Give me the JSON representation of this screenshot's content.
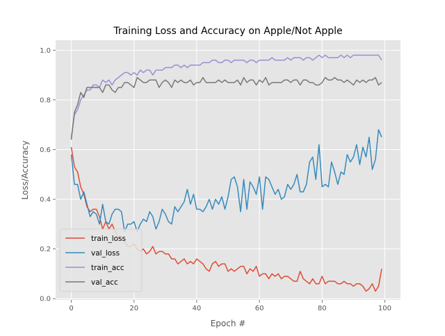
{
  "chart_data": {
    "type": "line",
    "title": "Training Loss and Accuracy on Apple/Not Apple",
    "xlabel": "Epoch #",
    "ylabel": "Loss/Accuracy",
    "xlim": [
      -5,
      105
    ],
    "ylim": [
      -0.005,
      1.04
    ],
    "xticks": [
      0,
      20,
      40,
      60,
      80,
      100
    ],
    "yticks": [
      0.0,
      0.2,
      0.4,
      0.6,
      0.8,
      1.0
    ],
    "xtick_labels": [
      "0",
      "20",
      "40",
      "60",
      "80",
      "100"
    ],
    "ytick_labels": [
      "0.0",
      "0.2",
      "0.4",
      "0.6",
      "0.8",
      "1.0"
    ],
    "grid": true,
    "legend_position": "lower-left",
    "style": "ggplot",
    "x": [
      0,
      1,
      2,
      3,
      4,
      5,
      6,
      7,
      8,
      9,
      10,
      11,
      12,
      13,
      14,
      15,
      16,
      17,
      18,
      19,
      20,
      21,
      22,
      23,
      24,
      25,
      26,
      27,
      28,
      29,
      30,
      31,
      32,
      33,
      34,
      35,
      36,
      37,
      38,
      39,
      40,
      41,
      42,
      43,
      44,
      45,
      46,
      47,
      48,
      49,
      50,
      51,
      52,
      53,
      54,
      55,
      56,
      57,
      58,
      59,
      60,
      61,
      62,
      63,
      64,
      65,
      66,
      67,
      68,
      69,
      70,
      71,
      72,
      73,
      74,
      75,
      76,
      77,
      78,
      79,
      80,
      81,
      82,
      83,
      84,
      85,
      86,
      87,
      88,
      89,
      90,
      91,
      92,
      93,
      94,
      95,
      96,
      97,
      98,
      99
    ],
    "series": [
      {
        "name": "train_loss",
        "color": "#E24A33",
        "values": [
          0.61,
          0.53,
          0.51,
          0.45,
          0.42,
          0.37,
          0.35,
          0.36,
          0.36,
          0.33,
          0.28,
          0.31,
          0.28,
          0.3,
          0.27,
          0.25,
          0.24,
          0.23,
          0.21,
          0.21,
          0.22,
          0.2,
          0.19,
          0.2,
          0.18,
          0.19,
          0.21,
          0.18,
          0.19,
          0.19,
          0.18,
          0.18,
          0.16,
          0.16,
          0.14,
          0.15,
          0.16,
          0.14,
          0.15,
          0.14,
          0.16,
          0.15,
          0.14,
          0.12,
          0.11,
          0.14,
          0.15,
          0.13,
          0.14,
          0.14,
          0.11,
          0.12,
          0.11,
          0.12,
          0.13,
          0.13,
          0.1,
          0.12,
          0.11,
          0.13,
          0.09,
          0.1,
          0.1,
          0.08,
          0.1,
          0.09,
          0.1,
          0.08,
          0.09,
          0.09,
          0.08,
          0.07,
          0.07,
          0.11,
          0.08,
          0.07,
          0.06,
          0.08,
          0.06,
          0.06,
          0.09,
          0.06,
          0.07,
          0.07,
          0.07,
          0.06,
          0.06,
          0.07,
          0.06,
          0.06,
          0.05,
          0.06,
          0.06,
          0.05,
          0.03,
          0.04,
          0.06,
          0.03,
          0.05,
          0.12
        ]
      },
      {
        "name": "val_loss",
        "color": "#348ABD",
        "values": [
          0.58,
          0.46,
          0.46,
          0.4,
          0.43,
          0.38,
          0.33,
          0.35,
          0.34,
          0.3,
          0.38,
          0.31,
          0.3,
          0.34,
          0.36,
          0.36,
          0.35,
          0.27,
          0.3,
          0.3,
          0.31,
          0.27,
          0.3,
          0.32,
          0.31,
          0.35,
          0.33,
          0.28,
          0.31,
          0.36,
          0.34,
          0.31,
          0.3,
          0.37,
          0.35,
          0.37,
          0.39,
          0.44,
          0.38,
          0.42,
          0.36,
          0.36,
          0.35,
          0.37,
          0.4,
          0.36,
          0.4,
          0.38,
          0.41,
          0.36,
          0.41,
          0.48,
          0.49,
          0.45,
          0.35,
          0.48,
          0.36,
          0.47,
          0.45,
          0.42,
          0.49,
          0.36,
          0.49,
          0.48,
          0.45,
          0.42,
          0.44,
          0.4,
          0.41,
          0.46,
          0.44,
          0.46,
          0.5,
          0.43,
          0.43,
          0.46,
          0.55,
          0.57,
          0.48,
          0.62,
          0.45,
          0.46,
          0.45,
          0.55,
          0.51,
          0.46,
          0.51,
          0.5,
          0.58,
          0.55,
          0.57,
          0.62,
          0.54,
          0.61,
          0.57,
          0.65,
          0.52,
          0.56,
          0.68,
          0.65
        ]
      },
      {
        "name": "train_acc",
        "color": "#988ED5",
        "values": [
          0.65,
          0.74,
          0.76,
          0.8,
          0.82,
          0.84,
          0.84,
          0.86,
          0.86,
          0.85,
          0.88,
          0.87,
          0.88,
          0.86,
          0.88,
          0.89,
          0.9,
          0.91,
          0.91,
          0.9,
          0.91,
          0.9,
          0.92,
          0.91,
          0.92,
          0.92,
          0.9,
          0.92,
          0.92,
          0.92,
          0.93,
          0.93,
          0.93,
          0.94,
          0.94,
          0.93,
          0.94,
          0.93,
          0.94,
          0.94,
          0.94,
          0.94,
          0.95,
          0.95,
          0.95,
          0.96,
          0.96,
          0.95,
          0.95,
          0.96,
          0.96,
          0.95,
          0.96,
          0.96,
          0.96,
          0.96,
          0.95,
          0.96,
          0.96,
          0.95,
          0.96,
          0.96,
          0.96,
          0.96,
          0.97,
          0.96,
          0.96,
          0.96,
          0.96,
          0.97,
          0.96,
          0.97,
          0.97,
          0.97,
          0.96,
          0.97,
          0.97,
          0.96,
          0.97,
          0.98,
          0.97,
          0.98,
          0.97,
          0.97,
          0.97,
          0.97,
          0.98,
          0.97,
          0.98,
          0.97,
          0.98,
          0.98,
          0.98,
          0.98,
          0.98,
          0.98,
          0.98,
          0.98,
          0.98,
          0.96
        ]
      },
      {
        "name": "val_acc",
        "color": "#777777",
        "values": [
          0.64,
          0.75,
          0.78,
          0.83,
          0.81,
          0.85,
          0.85,
          0.85,
          0.85,
          0.85,
          0.83,
          0.86,
          0.86,
          0.84,
          0.83,
          0.85,
          0.85,
          0.87,
          0.87,
          0.86,
          0.85,
          0.89,
          0.88,
          0.87,
          0.87,
          0.88,
          0.88,
          0.88,
          0.85,
          0.87,
          0.88,
          0.87,
          0.85,
          0.88,
          0.87,
          0.88,
          0.87,
          0.87,
          0.88,
          0.86,
          0.87,
          0.87,
          0.89,
          0.87,
          0.87,
          0.87,
          0.87,
          0.88,
          0.87,
          0.88,
          0.87,
          0.87,
          0.87,
          0.88,
          0.86,
          0.89,
          0.87,
          0.88,
          0.88,
          0.86,
          0.88,
          0.87,
          0.89,
          0.86,
          0.87,
          0.87,
          0.87,
          0.87,
          0.88,
          0.88,
          0.87,
          0.88,
          0.88,
          0.86,
          0.88,
          0.88,
          0.87,
          0.87,
          0.86,
          0.86,
          0.87,
          0.89,
          0.88,
          0.88,
          0.89,
          0.88,
          0.88,
          0.87,
          0.88,
          0.87,
          0.86,
          0.88,
          0.87,
          0.88,
          0.87,
          0.88,
          0.88,
          0.89,
          0.86,
          0.87
        ]
      }
    ]
  }
}
